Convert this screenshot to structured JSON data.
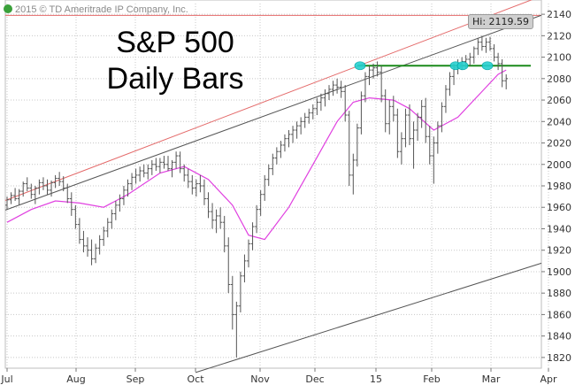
{
  "title": {
    "line1": "S&P 500",
    "line2": "Daily Bars"
  },
  "copyright": "2015 © TD Ameritrade IP Company, Inc.",
  "hi_label": "Hi: 2119.59",
  "colors": {
    "bars": "#555555",
    "moving_average": "#e040e0",
    "upper_channel": "#e46a6a",
    "red_horizontal": "#e46a6a",
    "black_channel": "#555555",
    "green_line": "#1a8a1a",
    "markers": "#27d0d0",
    "grid": "#c8c8c8"
  },
  "chart_data": {
    "type": "ohlc",
    "title": "S&P 500 Daily Bars",
    "x_ticks": [
      "Jul",
      "Aug",
      "Sep",
      "Oct",
      "Nov",
      "Dec",
      "15",
      "Feb",
      "Mar",
      "Apr"
    ],
    "y_ticks": [
      1820,
      1840,
      1860,
      1880,
      1900,
      1920,
      1940,
      1960,
      1980,
      2000,
      2020,
      2040,
      2060,
      2080,
      2100,
      2120,
      2140
    ],
    "ylim": [
      1810,
      2150
    ],
    "grid": true,
    "annotations": {
      "hi": 2119.59,
      "red_horizontal": 2139,
      "green_horizontal": 2092,
      "upper_red_trendline": [
        {
          "date": "Jul",
          "value": 1967
        },
        {
          "date": "Mar",
          "value": 2139
        }
      ],
      "black_trendline": [
        {
          "date": "Jul",
          "value": 1958
        },
        {
          "date": "Mar",
          "value": 2122
        }
      ],
      "lower_black_trendline": [
        {
          "date": "Oct",
          "value": 1806
        },
        {
          "date": "Apr",
          "value": 1910
        }
      ],
      "markers": [
        {
          "date": "Dec",
          "value": 2092
        },
        {
          "date": "Feb",
          "value": 2092
        },
        {
          "date": "Feb",
          "value": 2092
        },
        {
          "date": "Mar",
          "value": 2092
        }
      ]
    },
    "series": [
      {
        "type": "ohlc",
        "description_keys": [
          "t",
          "o",
          "h",
          "l",
          "c"
        ],
        "data": [
          [
            0,
            1962,
            1970,
            1958,
            1967
          ],
          [
            1,
            1967,
            1974,
            1963,
            1971
          ],
          [
            2,
            1971,
            1978,
            1966,
            1968
          ],
          [
            3,
            1968,
            1977,
            1962,
            1975
          ],
          [
            4,
            1975,
            1984,
            1970,
            1982
          ],
          [
            5,
            1982,
            1988,
            1975,
            1978
          ],
          [
            6,
            1978,
            1982,
            1968,
            1972
          ],
          [
            7,
            1972,
            1980,
            1963,
            1978
          ],
          [
            8,
            1978,
            1986,
            1972,
            1983
          ],
          [
            9,
            1983,
            1988,
            1976,
            1980
          ],
          [
            10,
            1980,
            1986,
            1972,
            1976
          ],
          [
            11,
            1976,
            1985,
            1970,
            1983
          ],
          [
            12,
            1983,
            1990,
            1978,
            1987
          ],
          [
            13,
            1987,
            1993,
            1980,
            1984
          ],
          [
            14,
            1984,
            1989,
            1975,
            1978
          ],
          [
            15,
            1978,
            1982,
            1964,
            1968
          ],
          [
            16,
            1968,
            1974,
            1952,
            1958
          ],
          [
            17,
            1958,
            1962,
            1940,
            1944
          ],
          [
            18,
            1944,
            1950,
            1926,
            1930
          ],
          [
            19,
            1930,
            1938,
            1918,
            1924
          ],
          [
            20,
            1924,
            1932,
            1914,
            1920
          ],
          [
            21,
            1920,
            1930,
            1906,
            1912
          ],
          [
            22,
            1912,
            1926,
            1908,
            1922
          ],
          [
            23,
            1922,
            1934,
            1916,
            1930
          ],
          [
            24,
            1930,
            1942,
            1924,
            1938
          ],
          [
            25,
            1938,
            1950,
            1932,
            1946
          ],
          [
            26,
            1946,
            1958,
            1940,
            1954
          ],
          [
            27,
            1954,
            1966,
            1948,
            1962
          ],
          [
            28,
            1962,
            1972,
            1956,
            1968
          ],
          [
            29,
            1968,
            1980,
            1962,
            1976
          ],
          [
            30,
            1976,
            1986,
            1970,
            1982
          ],
          [
            31,
            1982,
            1992,
            1976,
            1988
          ],
          [
            32,
            1988,
            1996,
            1982,
            1990
          ],
          [
            33,
            1990,
            1998,
            1984,
            1994
          ],
          [
            34,
            1994,
            2000,
            1988,
            1992
          ],
          [
            35,
            1992,
            2000,
            1986,
            1996
          ],
          [
            36,
            1996,
            2004,
            1990,
            2000
          ],
          [
            37,
            2000,
            2006,
            1994,
            1998
          ],
          [
            38,
            1998,
            2006,
            1992,
            2002
          ],
          [
            39,
            2002,
            2008,
            1996,
            2000
          ],
          [
            40,
            2000,
            2008,
            1994,
            1996
          ],
          [
            41,
            1996,
            2004,
            1988,
            2002
          ],
          [
            42,
            2002,
            2012,
            1996,
            2008
          ],
          [
            43,
            2008,
            2012,
            1992,
            1996
          ],
          [
            44,
            1996,
            2000,
            1984,
            1990
          ],
          [
            45,
            1990,
            1996,
            1978,
            1984
          ],
          [
            46,
            1984,
            1990,
            1972,
            1978
          ],
          [
            47,
            1978,
            1986,
            1970,
            1982
          ],
          [
            48,
            1982,
            1990,
            1974,
            1980
          ],
          [
            49,
            1980,
            1986,
            1962,
            1968
          ],
          [
            50,
            1968,
            1974,
            1950,
            1956
          ],
          [
            51,
            1956,
            1964,
            1940,
            1948
          ],
          [
            52,
            1948,
            1958,
            1936,
            1952
          ],
          [
            53,
            1952,
            1960,
            1940,
            1946
          ],
          [
            54,
            1946,
            1952,
            1918,
            1924
          ],
          [
            55,
            1924,
            1932,
            1880,
            1888
          ],
          [
            56,
            1888,
            1896,
            1846,
            1860
          ],
          [
            57,
            1860,
            1872,
            1820,
            1868
          ],
          [
            58,
            1868,
            1900,
            1862,
            1896
          ],
          [
            59,
            1896,
            1916,
            1890,
            1910
          ],
          [
            60,
            1910,
            1930,
            1904,
            1926
          ],
          [
            61,
            1926,
            1946,
            1920,
            1942
          ],
          [
            62,
            1942,
            1962,
            1936,
            1958
          ],
          [
            63,
            1958,
            1976,
            1952,
            1972
          ],
          [
            64,
            1972,
            1990,
            1966,
            1986
          ],
          [
            65,
            1986,
            2000,
            1980,
            1996
          ],
          [
            66,
            1996,
            2010,
            1990,
            2006
          ],
          [
            67,
            2006,
            2016,
            2000,
            2012
          ],
          [
            68,
            2012,
            2022,
            2006,
            2018
          ],
          [
            69,
            2018,
            2028,
            2012,
            2024
          ],
          [
            70,
            2024,
            2032,
            2016,
            2028
          ],
          [
            71,
            2028,
            2036,
            2020,
            2032
          ],
          [
            72,
            2032,
            2040,
            2024,
            2036
          ],
          [
            73,
            2036,
            2044,
            2028,
            2040
          ],
          [
            74,
            2040,
            2048,
            2034,
            2044
          ],
          [
            75,
            2044,
            2052,
            2038,
            2048
          ],
          [
            76,
            2048,
            2056,
            2042,
            2052
          ],
          [
            77,
            2052,
            2062,
            2046,
            2058
          ],
          [
            78,
            2058,
            2066,
            2050,
            2062
          ],
          [
            79,
            2062,
            2070,
            2054,
            2066
          ],
          [
            80,
            2066,
            2074,
            2060,
            2070
          ],
          [
            81,
            2070,
            2078,
            2064,
            2074
          ],
          [
            82,
            2074,
            2080,
            2066,
            2072
          ],
          [
            83,
            2072,
            2078,
            2062,
            2068
          ],
          [
            84,
            2068,
            2074,
            2040,
            2046
          ],
          [
            85,
            2046,
            2050,
            1980,
            1990
          ],
          [
            86,
            1990,
            2010,
            1972,
            2004
          ],
          [
            87,
            2004,
            2038,
            1998,
            2034
          ],
          [
            88,
            2034,
            2068,
            2028,
            2064
          ],
          [
            89,
            2064,
            2086,
            2058,
            2082
          ],
          [
            90,
            2082,
            2092,
            2074,
            2088
          ],
          [
            91,
            2088,
            2094,
            2080,
            2090
          ],
          [
            92,
            2090,
            2096,
            2082,
            2086
          ],
          [
            93,
            2086,
            2092,
            2058,
            2064
          ],
          [
            94,
            2064,
            2070,
            2030,
            2038
          ],
          [
            95,
            2038,
            2060,
            2028,
            2054
          ],
          [
            96,
            2054,
            2064,
            2040,
            2046
          ],
          [
            97,
            2046,
            2052,
            2006,
            2012
          ],
          [
            98,
            2012,
            2030,
            2000,
            2024
          ],
          [
            99,
            2024,
            2052,
            2016,
            2046
          ],
          [
            100,
            2046,
            2056,
            2018,
            2024
          ],
          [
            101,
            2024,
            2040,
            1996,
            2032
          ],
          [
            102,
            2032,
            2048,
            2022,
            2044
          ],
          [
            103,
            2044,
            2060,
            2034,
            2054
          ],
          [
            104,
            2054,
            2062,
            2020,
            2026
          ],
          [
            105,
            2026,
            2036,
            2000,
            2008
          ],
          [
            106,
            2008,
            2026,
            1982,
            2020
          ],
          [
            107,
            2020,
            2040,
            2010,
            2036
          ],
          [
            108,
            2036,
            2058,
            2030,
            2054
          ],
          [
            109,
            2054,
            2074,
            2048,
            2070
          ],
          [
            110,
            2070,
            2086,
            2064,
            2082
          ],
          [
            111,
            2082,
            2094,
            2074,
            2090
          ],
          [
            112,
            2090,
            2098,
            2084,
            2094
          ],
          [
            113,
            2094,
            2100,
            2088,
            2096
          ],
          [
            114,
            2096,
            2102,
            2090,
            2098
          ],
          [
            115,
            2098,
            2104,
            2092,
            2100
          ],
          [
            116,
            2100,
            2110,
            2094,
            2108
          ],
          [
            117,
            2108,
            2118,
            2102,
            2114
          ],
          [
            118,
            2114,
            2120,
            2106,
            2110
          ],
          [
            119,
            2110,
            2118,
            2104,
            2114
          ],
          [
            120,
            2114,
            2119,
            2106,
            2108
          ],
          [
            121,
            2108,
            2112,
            2096,
            2100
          ],
          [
            122,
            2100,
            2104,
            2088,
            2094
          ],
          [
            123,
            2094,
            2098,
            2072,
            2078
          ],
          [
            124,
            2078,
            2084,
            2070,
            2080
          ]
        ]
      },
      {
        "type": "line",
        "name": "moving average",
        "description_keys": [
          "t",
          "v"
        ],
        "data": [
          [
            0,
            1946
          ],
          [
            6,
            1958
          ],
          [
            12,
            1966
          ],
          [
            18,
            1964
          ],
          [
            24,
            1960
          ],
          [
            30,
            1972
          ],
          [
            38,
            1992
          ],
          [
            44,
            1998
          ],
          [
            50,
            1986
          ],
          [
            56,
            1962
          ],
          [
            60,
            1934
          ],
          [
            64,
            1930
          ],
          [
            70,
            1960
          ],
          [
            76,
            2000
          ],
          [
            82,
            2040
          ],
          [
            86,
            2058
          ],
          [
            90,
            2062
          ],
          [
            96,
            2060
          ],
          [
            100,
            2052
          ],
          [
            106,
            2032
          ],
          [
            112,
            2044
          ],
          [
            118,
            2068
          ],
          [
            122,
            2084
          ],
          [
            124,
            2088
          ]
        ]
      }
    ]
  }
}
